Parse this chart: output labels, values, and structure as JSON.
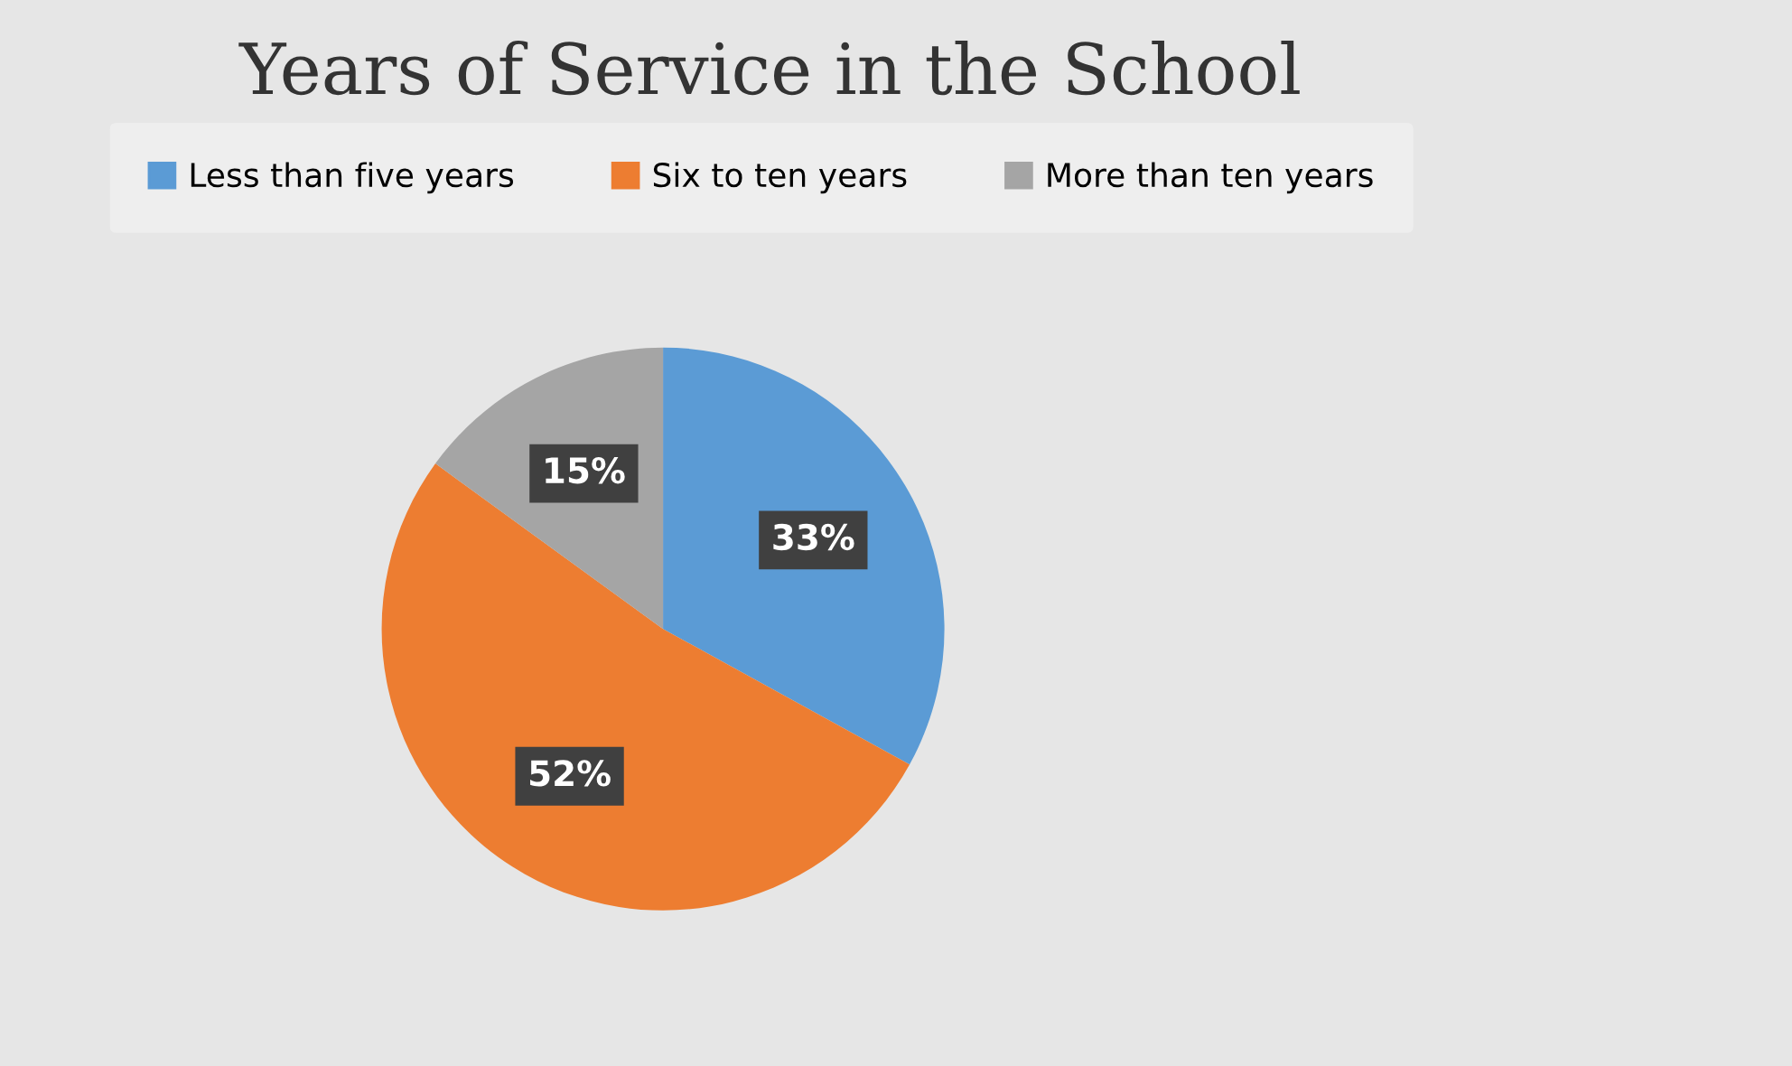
{
  "chart_data": {
    "type": "pie",
    "title": "Years of Service in the School",
    "categories": [
      "Less than five years",
      "Six to ten years",
      "More than ten years"
    ],
    "values": [
      33,
      52,
      15
    ],
    "colors": [
      "#5b9bd5",
      "#ed7d31",
      "#a5a5a5"
    ],
    "value_labels": [
      "33%",
      "52%",
      "15%"
    ],
    "legend": "top"
  }
}
